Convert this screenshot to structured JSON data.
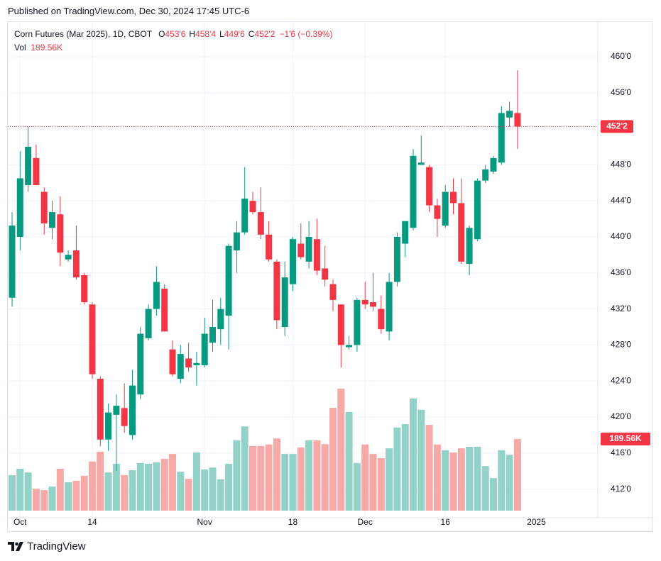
{
  "published": "Published on TradingView.com, Dec 30, 2024 17:45 UTC-6",
  "brand": "TradingView",
  "chart_data": {
    "type": "candlestick",
    "title": "Corn Futures (Mar 2025), 1D, CBOT",
    "ohlc_header": [
      {
        "key": "O",
        "val": "453'6"
      },
      {
        "key": "H",
        "val": "458'4"
      },
      {
        "key": "L",
        "val": "449'6"
      },
      {
        "key": "C",
        "val": "452'2"
      }
    ],
    "change": "−1'6 (−0.39%)",
    "volume_title": "Vol",
    "last_volume_label": "189.56K",
    "last_price_label": "452'2",
    "up_color": "#089981",
    "down_color": "#f23645",
    "volume_up_color": "#92d2c8",
    "volume_down_color": "#f7a9a7",
    "ylim": [
      411,
      461
    ],
    "yticks": [
      {
        "value": 412,
        "label": "412'0"
      },
      {
        "value": 416,
        "label": "416'0"
      },
      {
        "value": 420,
        "label": "420'0"
      },
      {
        "value": 424,
        "label": "424'0"
      },
      {
        "value": 428,
        "label": "428'0"
      },
      {
        "value": 432,
        "label": "432'0"
      },
      {
        "value": 436,
        "label": "436'0"
      },
      {
        "value": 440,
        "label": "440'0"
      },
      {
        "value": 444,
        "label": "444'0"
      },
      {
        "value": 448,
        "label": "448'0"
      },
      {
        "value": 452,
        "label": "452'0"
      },
      {
        "value": 456,
        "label": "456'0"
      },
      {
        "value": 460,
        "label": "460'0"
      }
    ],
    "grid": true,
    "categories": [
      null,
      "Oct",
      null,
      null,
      null,
      null,
      null,
      null,
      null,
      null,
      "14",
      null,
      null,
      null,
      null,
      null,
      null,
      null,
      null,
      null,
      null,
      null,
      null,
      null,
      "Nov",
      null,
      null,
      null,
      null,
      null,
      null,
      null,
      null,
      null,
      null,
      "18",
      null,
      null,
      null,
      null,
      null,
      null,
      null,
      null,
      "Dec",
      null,
      null,
      null,
      null,
      null,
      null,
      null,
      null,
      null,
      "16",
      null,
      null,
      null,
      null,
      null,
      null,
      null,
      null,
      null
    ],
    "next_period_label": "2025",
    "open": [
      433.25,
      440,
      445.75,
      448.75,
      445,
      441,
      442.5,
      437.5,
      438.5,
      435.75,
      432.5,
      424.25,
      417.5,
      420.25,
      421,
      418,
      422.5,
      428.75,
      432,
      434.25,
      427.5,
      424.25,
      426.5,
      425.75,
      425.75,
      428.25,
      429.75,
      431.25,
      438.5,
      440.5,
      444,
      442.75,
      440.25,
      437.25,
      430,
      434.75,
      439.25,
      437.25,
      439.75,
      436.5,
      434.75,
      432.5,
      427.75,
      428,
      433,
      432.75,
      432,
      429.5,
      435,
      439.25,
      441,
      448,
      447.75,
      443.5,
      441.25,
      445,
      443.75,
      437,
      439.75,
      446.25,
      447.25,
      448.25,
      453.25,
      453.75
    ],
    "high": [
      442.75,
      449.5,
      452.25,
      450.25,
      445.5,
      444,
      444.5,
      438.5,
      441.25,
      436,
      432.75,
      424.5,
      421.5,
      422.5,
      423.75,
      425.25,
      430,
      432.5,
      436.75,
      434.75,
      428.5,
      428,
      428.25,
      427.25,
      431,
      433,
      433.25,
      439.25,
      441.75,
      447.75,
      445,
      445.5,
      441.75,
      437.5,
      437.25,
      440,
      441.5,
      441.75,
      442,
      439,
      435.25,
      432.5,
      429,
      433.25,
      435,
      436,
      433.5,
      436,
      440.5,
      441.75,
      449.75,
      451.25,
      448,
      444.25,
      445.75,
      446.5,
      446.5,
      441.25,
      446.5,
      448,
      449,
      454.5,
      455,
      458.5
    ],
    "low": [
      432.25,
      438.5,
      445,
      445.75,
      440.25,
      439.75,
      436.75,
      437.25,
      435.25,
      432.5,
      424.25,
      416.75,
      416.25,
      414,
      418.25,
      417.5,
      422,
      428.5,
      431.25,
      429.5,
      424.5,
      423.75,
      425,
      423.5,
      425.5,
      427.25,
      428,
      427.5,
      436,
      440.25,
      442.5,
      439.75,
      437.25,
      429.75,
      429,
      434,
      437.5,
      436.5,
      435.75,
      434.5,
      431.75,
      425.5,
      427.5,
      427.25,
      432,
      431.75,
      429.25,
      428.5,
      434.5,
      437.75,
      440.75,
      448,
      442.75,
      440,
      441,
      442.5,
      437,
      435.75,
      439.5,
      446,
      447,
      448,
      452.25,
      449.75
    ],
    "close": [
      441.25,
      446.5,
      450,
      445.75,
      441.5,
      442.75,
      438.25,
      438,
      435.5,
      432.75,
      424.75,
      417.5,
      420.5,
      421.25,
      419,
      423.5,
      429.25,
      432,
      435,
      429.5,
      424.75,
      427,
      425.5,
      426,
      429.25,
      430,
      432,
      439,
      440.5,
      444.25,
      442.75,
      440.25,
      437.5,
      430.75,
      435.5,
      439.75,
      437.75,
      440,
      436.25,
      435.25,
      433,
      428,
      428,
      433,
      432.5,
      432.25,
      429.75,
      435,
      440,
      441.75,
      449,
      448.25,
      443.5,
      442,
      445,
      443.75,
      437.25,
      441,
      446.25,
      447.5,
      448.75,
      453.75,
      454,
      452.25
    ],
    "volume": [
      94000,
      111000,
      101000,
      58000,
      54000,
      64000,
      111000,
      75000,
      79000,
      92000,
      130000,
      156000,
      101000,
      124000,
      94000,
      107000,
      126000,
      124000,
      128000,
      137000,
      150000,
      103000,
      84000,
      154000,
      109000,
      114000,
      83000,
      124000,
      186000,
      223000,
      171000,
      171000,
      175000,
      191000,
      150000,
      150000,
      167000,
      186000,
      186000,
      176000,
      272000,
      323000,
      261000,
      126000,
      175000,
      150000,
      139000,
      165000,
      220000,
      229000,
      297000,
      267000,
      227000,
      175000,
      160000,
      154000,
      165000,
      169000,
      169000,
      118000,
      86000,
      160000,
      148000,
      189560
    ]
  }
}
